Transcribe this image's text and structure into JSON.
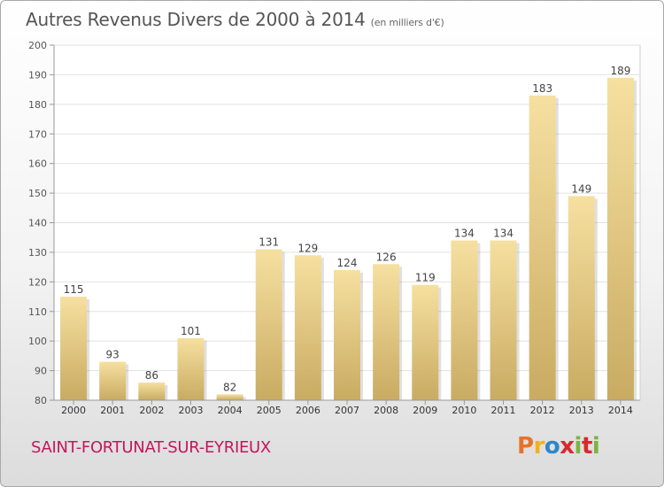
{
  "chart_data": {
    "type": "bar",
    "title": "Autres Revenus Divers de 2000 à 2014",
    "subtitle": "(en milliers d'€)",
    "categories": [
      "2000",
      "2001",
      "2002",
      "2003",
      "2004",
      "2005",
      "2006",
      "2007",
      "2008",
      "2009",
      "2010",
      "2011",
      "2012",
      "2013",
      "2014"
    ],
    "values": [
      115,
      93,
      86,
      101,
      82,
      131,
      129,
      124,
      126,
      119,
      134,
      134,
      183,
      149,
      189
    ],
    "ylim": [
      80,
      200
    ],
    "yticks": [
      80,
      90,
      100,
      110,
      120,
      130,
      140,
      150,
      160,
      170,
      180,
      190,
      200
    ],
    "grid": true,
    "bar_color_top": "#f6e0a0",
    "bar_color_bottom": "#c9ab62"
  },
  "footer": {
    "commune": "SAINT-FORTUNAT-SUR-EYRIEUX",
    "commune_color": "#c2185b",
    "logo": {
      "parts": [
        "P",
        "r",
        "o",
        "x",
        "i",
        "t",
        "i"
      ]
    }
  }
}
